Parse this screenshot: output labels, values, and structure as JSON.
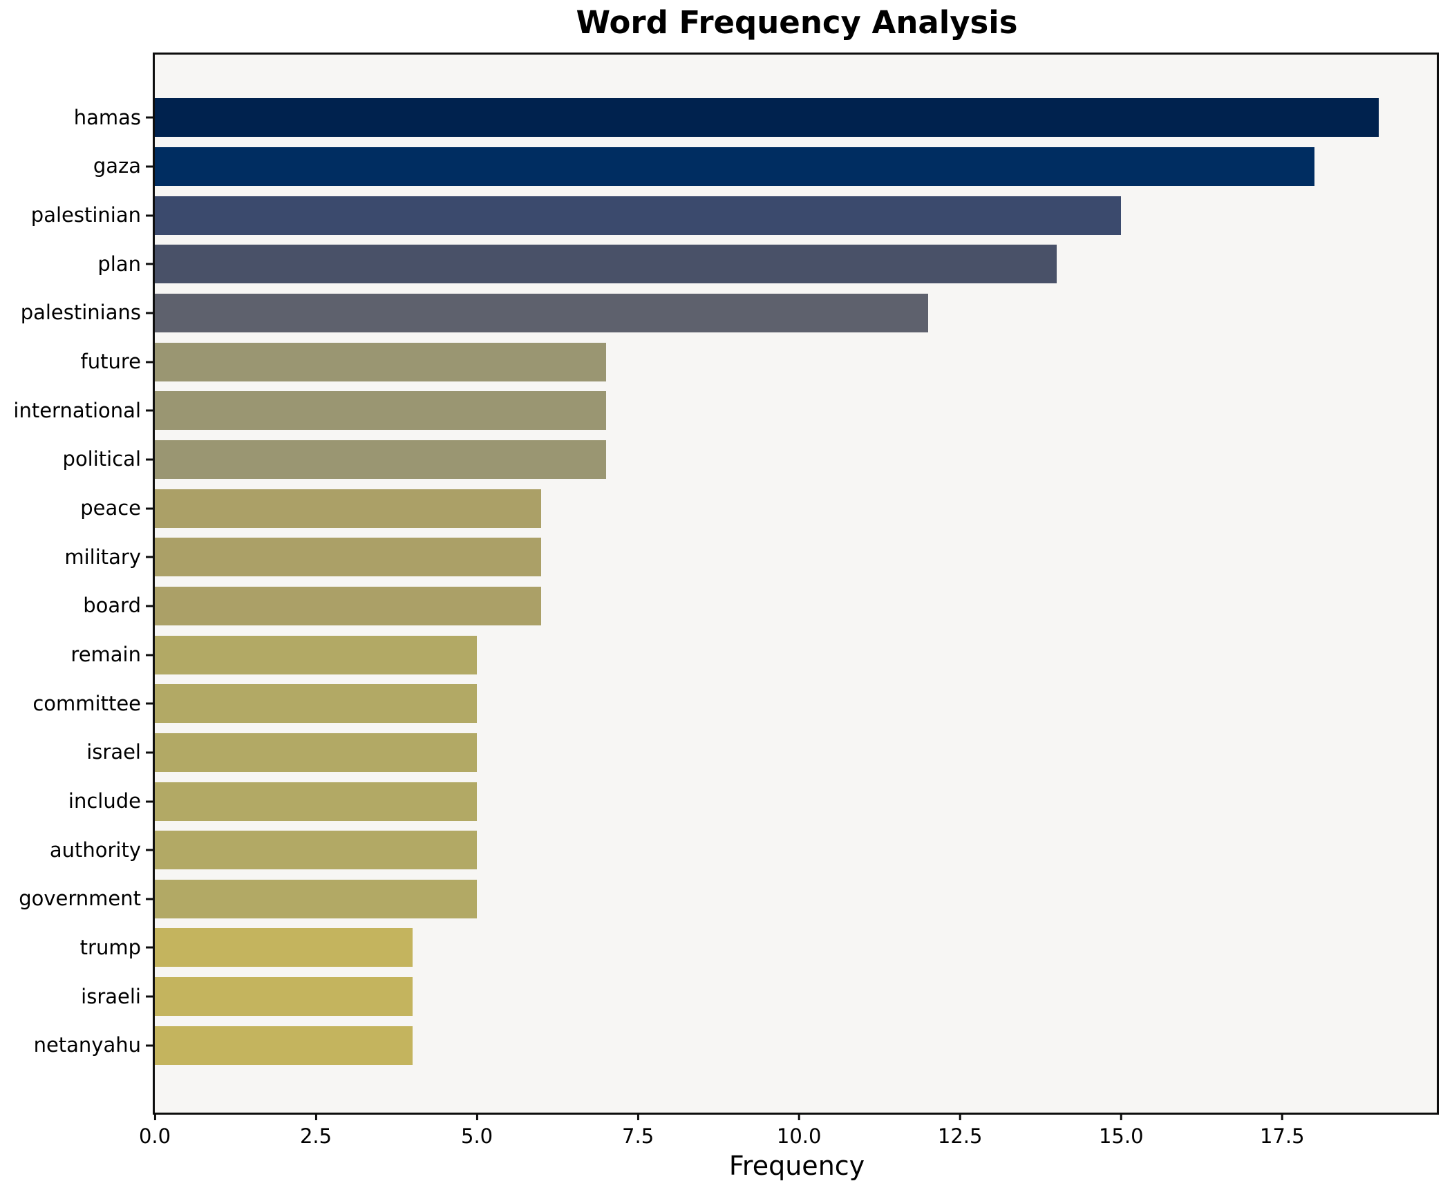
{
  "title": "Word Frequency Analysis",
  "xlabel": "Frequency",
  "style": {
    "figure_bg": "#ffffff",
    "plot_bg": "#f7f6f4",
    "spine_color": "#0d0d0d",
    "text_color": "#000000"
  },
  "chart_data": {
    "type": "bar",
    "orientation": "horizontal",
    "title": "Word Frequency Analysis",
    "xlabel": "Frequency",
    "ylabel": "",
    "xlim": [
      0,
      19.9
    ],
    "grid": false,
    "legend": null,
    "x_ticks": [
      {
        "value": 0,
        "label": "0.0"
      },
      {
        "value": 2.5,
        "label": "2.5"
      },
      {
        "value": 5,
        "label": "5.0"
      },
      {
        "value": 7.5,
        "label": "7.5"
      },
      {
        "value": 10,
        "label": "10.0"
      },
      {
        "value": 12.5,
        "label": "12.5"
      },
      {
        "value": 15,
        "label": "15.0"
      },
      {
        "value": 17.5,
        "label": "17.5"
      }
    ],
    "categories": [
      "hamas",
      "gaza",
      "palestinian",
      "plan",
      "palestinians",
      "future",
      "international",
      "political",
      "peace",
      "military",
      "board",
      "remain",
      "committee",
      "israel",
      "include",
      "authority",
      "government",
      "trump",
      "israeli",
      "netanyahu"
    ],
    "values": [
      19,
      18,
      15,
      14,
      12,
      7,
      7,
      7,
      6,
      6,
      6,
      5,
      5,
      5,
      5,
      5,
      5,
      4,
      4,
      4
    ],
    "bar_colors": [
      "#00224e",
      "#002d61",
      "#3b4a6d",
      "#495168",
      "#5e616d",
      "#9a9672",
      "#9a9672",
      "#9a9672",
      "#aba067",
      "#aba067",
      "#aba067",
      "#b2a965",
      "#b2a965",
      "#b2a965",
      "#b2a965",
      "#b2a965",
      "#b2a965",
      "#c4b45e",
      "#c4b45e",
      "#c4b45e"
    ]
  }
}
